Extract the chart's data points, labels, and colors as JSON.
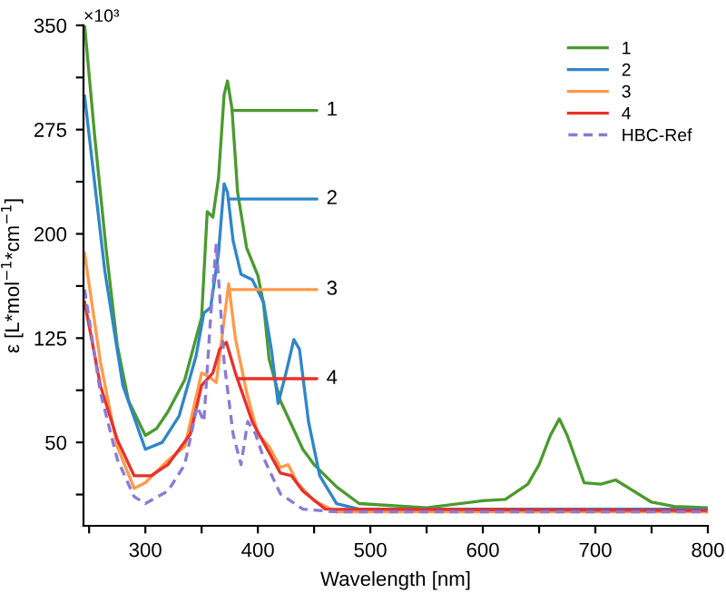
{
  "chart_data": {
    "type": "line",
    "xlabel": "Wavelength [nm]",
    "ylabel": "ε [L*mol$^{−1}$*cm$^{−1}$]",
    "xlim": [
      245,
      800
    ],
    "ylim": [
      -10,
      350
    ],
    "xticks": [
      {
        "value": 250,
        "label": null
      },
      300,
      {
        "value": 350,
        "label": null
      },
      400,
      {
        "value": 450,
        "label": null
      },
      500,
      {
        "value": 550,
        "label": null
      },
      600,
      {
        "value": 650,
        "label": null
      },
      700,
      {
        "value": 750,
        "label": null
      },
      800
    ],
    "yticks": [
      {
        "value": 12.5,
        "label": null
      },
      50,
      {
        "value": 87.5,
        "label": null
      },
      125,
      {
        "value": 162.5,
        "label": null
      },
      200,
      {
        "value": 237.5,
        "label": null
      },
      275,
      {
        "value": 312.5,
        "label": null
      },
      350
    ],
    "legend": "top right",
    "grid": false,
    "line_style": "solid",
    "marker": "none",
    "series": [
      {
        "name": "1",
        "color": "#4a9a2f",
        "x": [
          246,
          255,
          265,
          275,
          285,
          300,
          310,
          320,
          335,
          350,
          355,
          360,
          365,
          370,
          373,
          377,
          382,
          390,
          400,
          405,
          410,
          420,
          440,
          450,
          470,
          490,
          550,
          600,
          620,
          640,
          650,
          660,
          668,
          675,
          690,
          705,
          718,
          730,
          750,
          770,
          800
        ],
        "values": [
          350,
          270,
          190,
          120,
          80,
          55,
          60,
          72,
          95,
          140,
          216,
          212,
          240,
          300,
          310,
          290,
          230,
          190,
          170,
          150,
          110,
          80,
          45,
          34,
          18,
          6,
          3,
          8,
          9,
          20,
          34,
          55,
          67,
          55,
          21,
          20,
          23,
          17,
          7,
          4,
          3
        ]
      },
      {
        "name": "2",
        "color": "#2f86c8",
        "x": [
          246,
          264,
          280,
          300,
          315,
          330,
          345,
          352,
          358,
          365,
          370,
          373,
          378,
          385,
          395,
          405,
          412,
          418,
          425,
          432,
          437,
          445,
          455,
          470,
          490,
          600,
          800
        ],
        "values": [
          299,
          173,
          91,
          45,
          50,
          69,
          112,
          143,
          147,
          186,
          236,
          230,
          195,
          171,
          167,
          151,
          117,
          78,
          100,
          124,
          117,
          65,
          26,
          6,
          2,
          2,
          2
        ]
      },
      {
        "name": "3",
        "color": "#ff9a4a",
        "x": [
          246,
          260,
          275,
          290,
          300,
          320,
          335,
          350,
          357,
          363,
          368,
          374,
          380,
          390,
          400,
          410,
          420,
          427,
          435,
          450,
          470,
          800
        ],
        "values": [
          186,
          108,
          47,
          17,
          21,
          37,
          47,
          100,
          97,
          93,
          125,
          164,
          125,
          86,
          56,
          47,
          32,
          34,
          21,
          8,
          0,
          0
        ]
      },
      {
        "name": "4",
        "color": "#e8302a",
        "x": [
          246,
          260,
          275,
          290,
          305,
          320,
          340,
          350,
          360,
          366,
          372,
          380,
          395,
          405,
          420,
          430,
          440,
          460,
          800
        ],
        "values": [
          151,
          91,
          52,
          26,
          26,
          34,
          56,
          91,
          100,
          117,
          122,
          100,
          65,
          50,
          28,
          26,
          15,
          2,
          1
        ]
      },
      {
        "name": "HBC-Ref",
        "color": "#8a7ad8",
        "line_style": "dashed",
        "x": [
          246,
          260,
          275,
          290,
          300,
          320,
          335,
          346,
          352,
          358,
          363,
          370,
          378,
          385,
          391,
          398,
          405,
          420,
          440,
          470,
          800
        ],
        "values": [
          160,
          86,
          38,
          11,
          6,
          15,
          34,
          76,
          65,
          140,
          193,
          108,
          56,
          34,
          65,
          56,
          39,
          13,
          2,
          0,
          0
        ]
      }
    ],
    "annotations": [
      "×10³",
      "1",
      "2",
      "3",
      "4"
    ]
  }
}
